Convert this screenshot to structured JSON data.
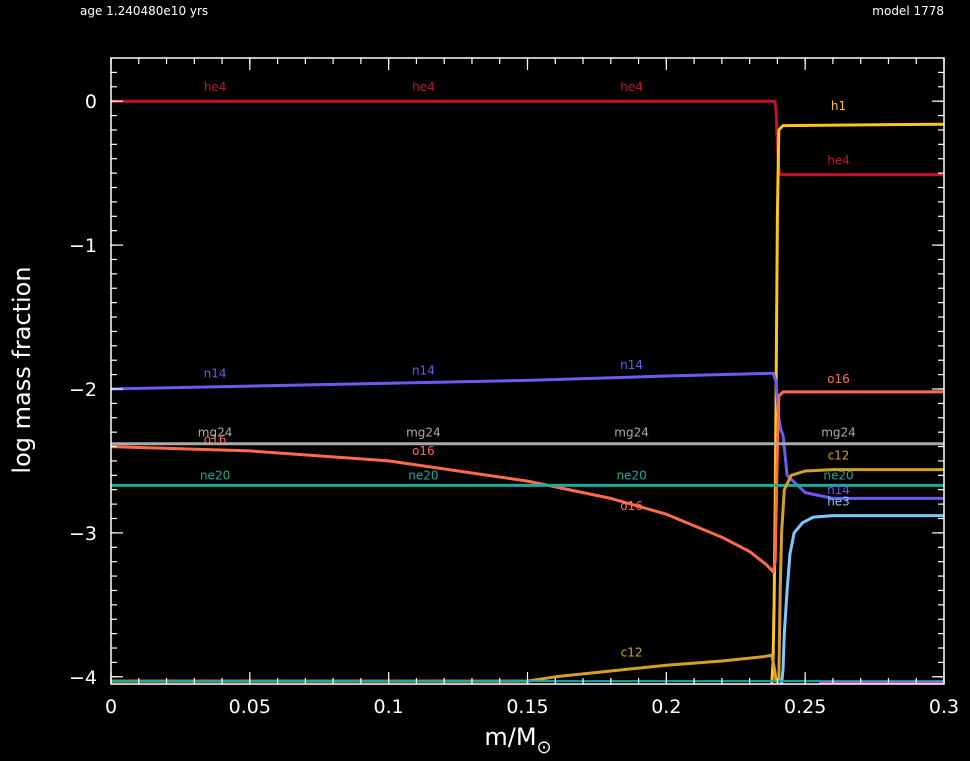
{
  "header": {
    "age": "age 1.240480e10 yrs",
    "model": "model 1778"
  },
  "colors": {
    "background": "#000000",
    "axes": "#ffffff"
  },
  "chart_data": {
    "type": "line",
    "xlabel": "m/M",
    "xlabel_sub": "⊙",
    "ylabel": "log mass fraction",
    "xlim": [
      0,
      0.3
    ],
    "ylim": [
      -4.05,
      0.3
    ],
    "xticks": [
      0,
      0.05,
      0.1,
      0.15,
      0.2,
      0.25,
      0.3
    ],
    "xtick_labels": [
      "0",
      "0.05",
      "0.1",
      "0.15",
      "0.2",
      "0.25",
      "0.3"
    ],
    "yticks": [
      0,
      -1,
      -2,
      -3,
      -4
    ],
    "ytick_labels": [
      "0",
      "−1",
      "−2",
      "−3",
      "−4"
    ],
    "grid": false,
    "series": [
      {
        "name": "he4",
        "color": "#c8102e",
        "width": 3,
        "x": [
          0,
          0.239,
          0.2395,
          0.24,
          0.2405,
          0.241,
          0.3
        ],
        "y": [
          0,
          0,
          -0.05,
          -0.3,
          -0.48,
          -0.51,
          -0.51
        ],
        "labels": [
          [
            0.0375,
            0.07
          ],
          [
            0.1125,
            0.07
          ],
          [
            0.1875,
            0.07
          ],
          [
            0.262,
            -0.44
          ]
        ]
      },
      {
        "name": "h1",
        "color": "#ffc61a",
        "width": 3,
        "x": [
          0.238,
          0.2384,
          0.2388,
          0.2392,
          0.2396,
          0.24,
          0.2405,
          0.242,
          0.3
        ],
        "y": [
          -4.05,
          -3.9,
          -3.5,
          -2.8,
          -1.8,
          -0.8,
          -0.2,
          -0.17,
          -0.16
        ],
        "labels": [
          [
            0.262,
            -0.06
          ]
        ]
      },
      {
        "name": "n14",
        "color": "#6b5bf0",
        "width": 3,
        "x": [
          0,
          0.05,
          0.1,
          0.15,
          0.2,
          0.2385,
          0.2395,
          0.2405,
          0.2412,
          0.242,
          0.2435,
          0.25,
          0.26,
          0.3
        ],
        "y": [
          -2.0,
          -1.98,
          -1.96,
          -1.94,
          -1.91,
          -1.89,
          -1.95,
          -2.2,
          -2.28,
          -2.32,
          -2.6,
          -2.72,
          -2.76,
          -2.76
        ],
        "labels": [
          [
            0.0375,
            -1.92
          ],
          [
            0.1125,
            -1.9
          ],
          [
            0.1875,
            -1.86
          ],
          [
            0.262,
            -2.73
          ]
        ]
      },
      {
        "name": "o16",
        "color": "#ff6a4a",
        "width": 3,
        "x": [
          0,
          0.05,
          0.1,
          0.15,
          0.18,
          0.2,
          0.22,
          0.23,
          0.236,
          0.2385,
          0.2392,
          0.2398,
          0.2405,
          0.242,
          0.3
        ],
        "y": [
          -2.4,
          -2.43,
          -2.5,
          -2.64,
          -2.76,
          -2.87,
          -3.03,
          -3.13,
          -3.22,
          -3.27,
          -3.2,
          -2.6,
          -2.05,
          -2.02,
          -2.02
        ],
        "labels": [
          [
            0.0375,
            -2.38
          ],
          [
            0.1125,
            -2.46
          ],
          [
            0.1875,
            -2.84
          ],
          [
            0.262,
            -1.96
          ]
        ]
      },
      {
        "name": "mg24",
        "color": "#aaaaaa",
        "width": 3,
        "x": [
          0,
          0.3
        ],
        "y": [
          -2.38,
          -2.38
        ],
        "labels": [
          [
            0.0375,
            -2.33
          ],
          [
            0.1125,
            -2.33
          ],
          [
            0.1875,
            -2.33
          ],
          [
            0.262,
            -2.33
          ]
        ]
      },
      {
        "name": "ne20",
        "color": "#1aab99",
        "width": 3,
        "x": [
          0,
          0.3
        ],
        "y": [
          -2.67,
          -2.67
        ],
        "labels": [
          [
            0.0375,
            -2.63
          ],
          [
            0.1125,
            -2.63
          ],
          [
            0.1875,
            -2.63
          ],
          [
            0.262,
            -2.63
          ]
        ]
      },
      {
        "name": "c12",
        "color": "#d4a028",
        "width": 3,
        "x": [
          0,
          0.15,
          0.16,
          0.18,
          0.2,
          0.22,
          0.235,
          0.238,
          0.239,
          0.2395,
          0.2405,
          0.241,
          0.2415,
          0.2425,
          0.245,
          0.25,
          0.26,
          0.3
        ],
        "y": [
          -4.03,
          -4.03,
          -4.0,
          -3.96,
          -3.92,
          -3.89,
          -3.86,
          -3.85,
          -3.95,
          -4.03,
          -4.03,
          -3.4,
          -3.0,
          -2.7,
          -2.6,
          -2.57,
          -2.56,
          -2.56
        ],
        "labels": [
          [
            0.1875,
            -3.86
          ],
          [
            0.262,
            -2.49
          ]
        ]
      },
      {
        "name": "he3",
        "color": "#7ec8ff",
        "width": 3,
        "x": [
          0.2415,
          0.242,
          0.2425,
          0.2435,
          0.2445,
          0.246,
          0.249,
          0.253,
          0.26,
          0.3
        ],
        "y": [
          -4.05,
          -3.95,
          -3.7,
          -3.4,
          -3.15,
          -3.0,
          -2.93,
          -2.89,
          -2.88,
          -2.88
        ],
        "labels": [
          [
            0.262,
            -2.81
          ]
        ]
      },
      {
        "name": "",
        "color": "#17a9b0",
        "width": 2,
        "x": [
          0,
          0.3
        ],
        "y": [
          -4.03,
          -4.03
        ],
        "labels": []
      },
      {
        "name": "",
        "color": "#e040c8",
        "width": 2,
        "x": [
          0.255,
          0.3
        ],
        "y": [
          -4.04,
          -4.04
        ],
        "labels": []
      }
    ]
  }
}
